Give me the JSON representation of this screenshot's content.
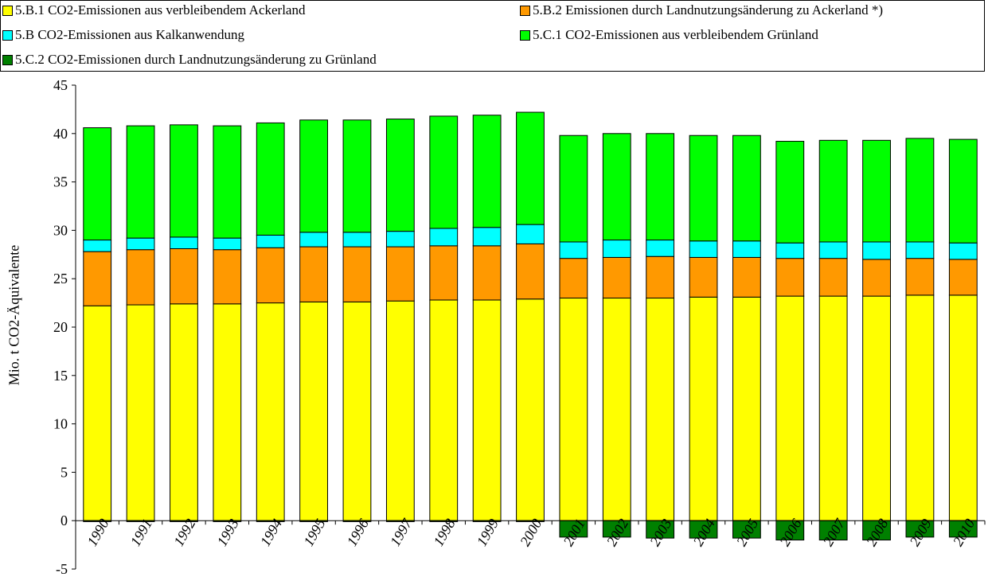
{
  "chart_data": {
    "type": "bar",
    "stacked": true,
    "ylabel": "Mio. t CO2-Äquivalente",
    "ylim": [
      -5,
      45
    ],
    "yticks": [
      -5,
      0,
      5,
      10,
      15,
      20,
      25,
      30,
      35,
      40,
      45
    ],
    "grid": false,
    "legend_position": "top",
    "categories": [
      "1990",
      "1991",
      "1992",
      "1993",
      "1994",
      "1995",
      "1996",
      "1997",
      "1998",
      "1999",
      "2000",
      "2001",
      "2002",
      "2003",
      "2004",
      "2005",
      "2006",
      "2007",
      "2008",
      "2009",
      "2010"
    ],
    "series": [
      {
        "name": "5.B.1 CO2-Emissionen aus verbleibendem Ackerland",
        "color": "#FFFF00",
        "values": [
          22.2,
          22.3,
          22.4,
          22.4,
          22.5,
          22.6,
          22.6,
          22.7,
          22.8,
          22.8,
          22.9,
          23.0,
          23.0,
          23.0,
          23.1,
          23.1,
          23.2,
          23.2,
          23.2,
          23.3,
          23.3
        ]
      },
      {
        "name": "5.B.2 Emissionen durch Landnutzungsänderung zu Ackerland *)",
        "color": "#FF9900",
        "values": [
          5.6,
          5.7,
          5.7,
          5.6,
          5.7,
          5.7,
          5.7,
          5.6,
          5.6,
          5.6,
          5.7,
          4.1,
          4.2,
          4.3,
          4.1,
          4.1,
          3.9,
          3.9,
          3.8,
          3.8,
          3.7
        ]
      },
      {
        "name": "5.B CO2-Emissionen aus Kalkanwendung",
        "color": "#00FFFF",
        "values": [
          1.2,
          1.2,
          1.2,
          1.2,
          1.3,
          1.5,
          1.5,
          1.6,
          1.8,
          1.9,
          2.0,
          1.7,
          1.8,
          1.7,
          1.7,
          1.7,
          1.6,
          1.7,
          1.8,
          1.7,
          1.7
        ]
      },
      {
        "name": "5.C.1 CO2-Emissionen aus verbleibendem Grünland",
        "color": "#00FF00",
        "values": [
          11.6,
          11.6,
          11.6,
          11.6,
          11.6,
          11.6,
          11.6,
          11.6,
          11.6,
          11.6,
          11.6,
          11.0,
          11.0,
          11.0,
          10.9,
          10.9,
          10.5,
          10.5,
          10.5,
          10.7,
          10.7
        ]
      },
      {
        "name": "5.C.2 CO2-Emissionen durch Landnutzungsänderung zu Grünland",
        "color": "#008000",
        "values": [
          -0.1,
          -0.1,
          -0.1,
          -0.1,
          -0.1,
          -0.1,
          -0.1,
          -0.1,
          -0.1,
          -0.1,
          -0.1,
          -1.7,
          -1.7,
          -1.8,
          -1.8,
          -1.8,
          -2.0,
          -2.0,
          -2.0,
          -1.7,
          -1.7
        ]
      }
    ]
  }
}
